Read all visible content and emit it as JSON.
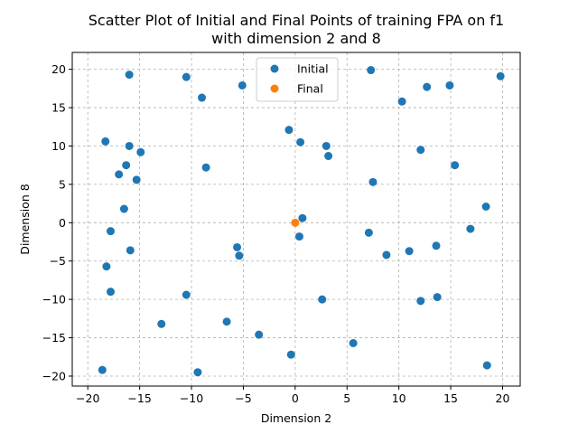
{
  "chart_data": {
    "type": "scatter",
    "title_line1": "Scatter Plot of Initial and Final Points of training FPA on f1",
    "title_line2": "with dimension 2 and 8",
    "xlabel": "Dimension 2",
    "ylabel": "Dimension 8",
    "xlim": [
      -21.5,
      21.7
    ],
    "ylim": [
      -21.3,
      22.2
    ],
    "xticks": [
      -20,
      -15,
      -10,
      -5,
      0,
      5,
      10,
      15,
      20
    ],
    "yticks": [
      -20,
      -15,
      -10,
      -5,
      0,
      5,
      10,
      15,
      20
    ],
    "grid": true,
    "legend_position": "top-center",
    "series": [
      {
        "name": "Initial",
        "color": "#1f77b4",
        "points": [
          [
            -16.0,
            19.3
          ],
          [
            -10.5,
            19.0
          ],
          [
            -9.0,
            16.3
          ],
          [
            -5.1,
            17.9
          ],
          [
            7.3,
            19.9
          ],
          [
            10.3,
            15.8
          ],
          [
            12.7,
            17.7
          ],
          [
            14.9,
            17.9
          ],
          [
            19.8,
            19.1
          ],
          [
            -18.3,
            10.6
          ],
          [
            -16.0,
            10.0
          ],
          [
            -14.9,
            9.2
          ],
          [
            -16.3,
            7.5
          ],
          [
            -17.0,
            6.3
          ],
          [
            -15.3,
            5.6
          ],
          [
            -8.6,
            7.2
          ],
          [
            -0.6,
            12.1
          ],
          [
            0.5,
            10.5
          ],
          [
            3.0,
            10.0
          ],
          [
            3.2,
            8.7
          ],
          [
            7.5,
            5.3
          ],
          [
            12.1,
            9.5
          ],
          [
            15.4,
            7.5
          ],
          [
            -16.5,
            1.8
          ],
          [
            -17.8,
            -1.1
          ],
          [
            -15.9,
            -3.6
          ],
          [
            -18.2,
            -5.7
          ],
          [
            -5.6,
            -3.2
          ],
          [
            -5.4,
            -4.3
          ],
          [
            0.7,
            0.6
          ],
          [
            0.4,
            -1.8
          ],
          [
            7.1,
            -1.3
          ],
          [
            11.0,
            -3.7
          ],
          [
            8.8,
            -4.2
          ],
          [
            13.6,
            -3.0
          ],
          [
            16.9,
            -0.8
          ],
          [
            18.4,
            2.1
          ],
          [
            -17.8,
            -9.0
          ],
          [
            -10.5,
            -9.4
          ],
          [
            -12.9,
            -13.2
          ],
          [
            -6.6,
            -12.9
          ],
          [
            -3.5,
            -14.6
          ],
          [
            2.6,
            -10.0
          ],
          [
            12.1,
            -10.2
          ],
          [
            13.7,
            -9.7
          ],
          [
            -18.6,
            -19.2
          ],
          [
            -9.4,
            -19.5
          ],
          [
            -0.4,
            -17.2
          ],
          [
            5.6,
            -15.7
          ],
          [
            18.5,
            -18.6
          ]
        ]
      },
      {
        "name": "Final",
        "color": "#ff7f0e",
        "points": [
          [
            0.0,
            0.0
          ]
        ]
      }
    ]
  }
}
